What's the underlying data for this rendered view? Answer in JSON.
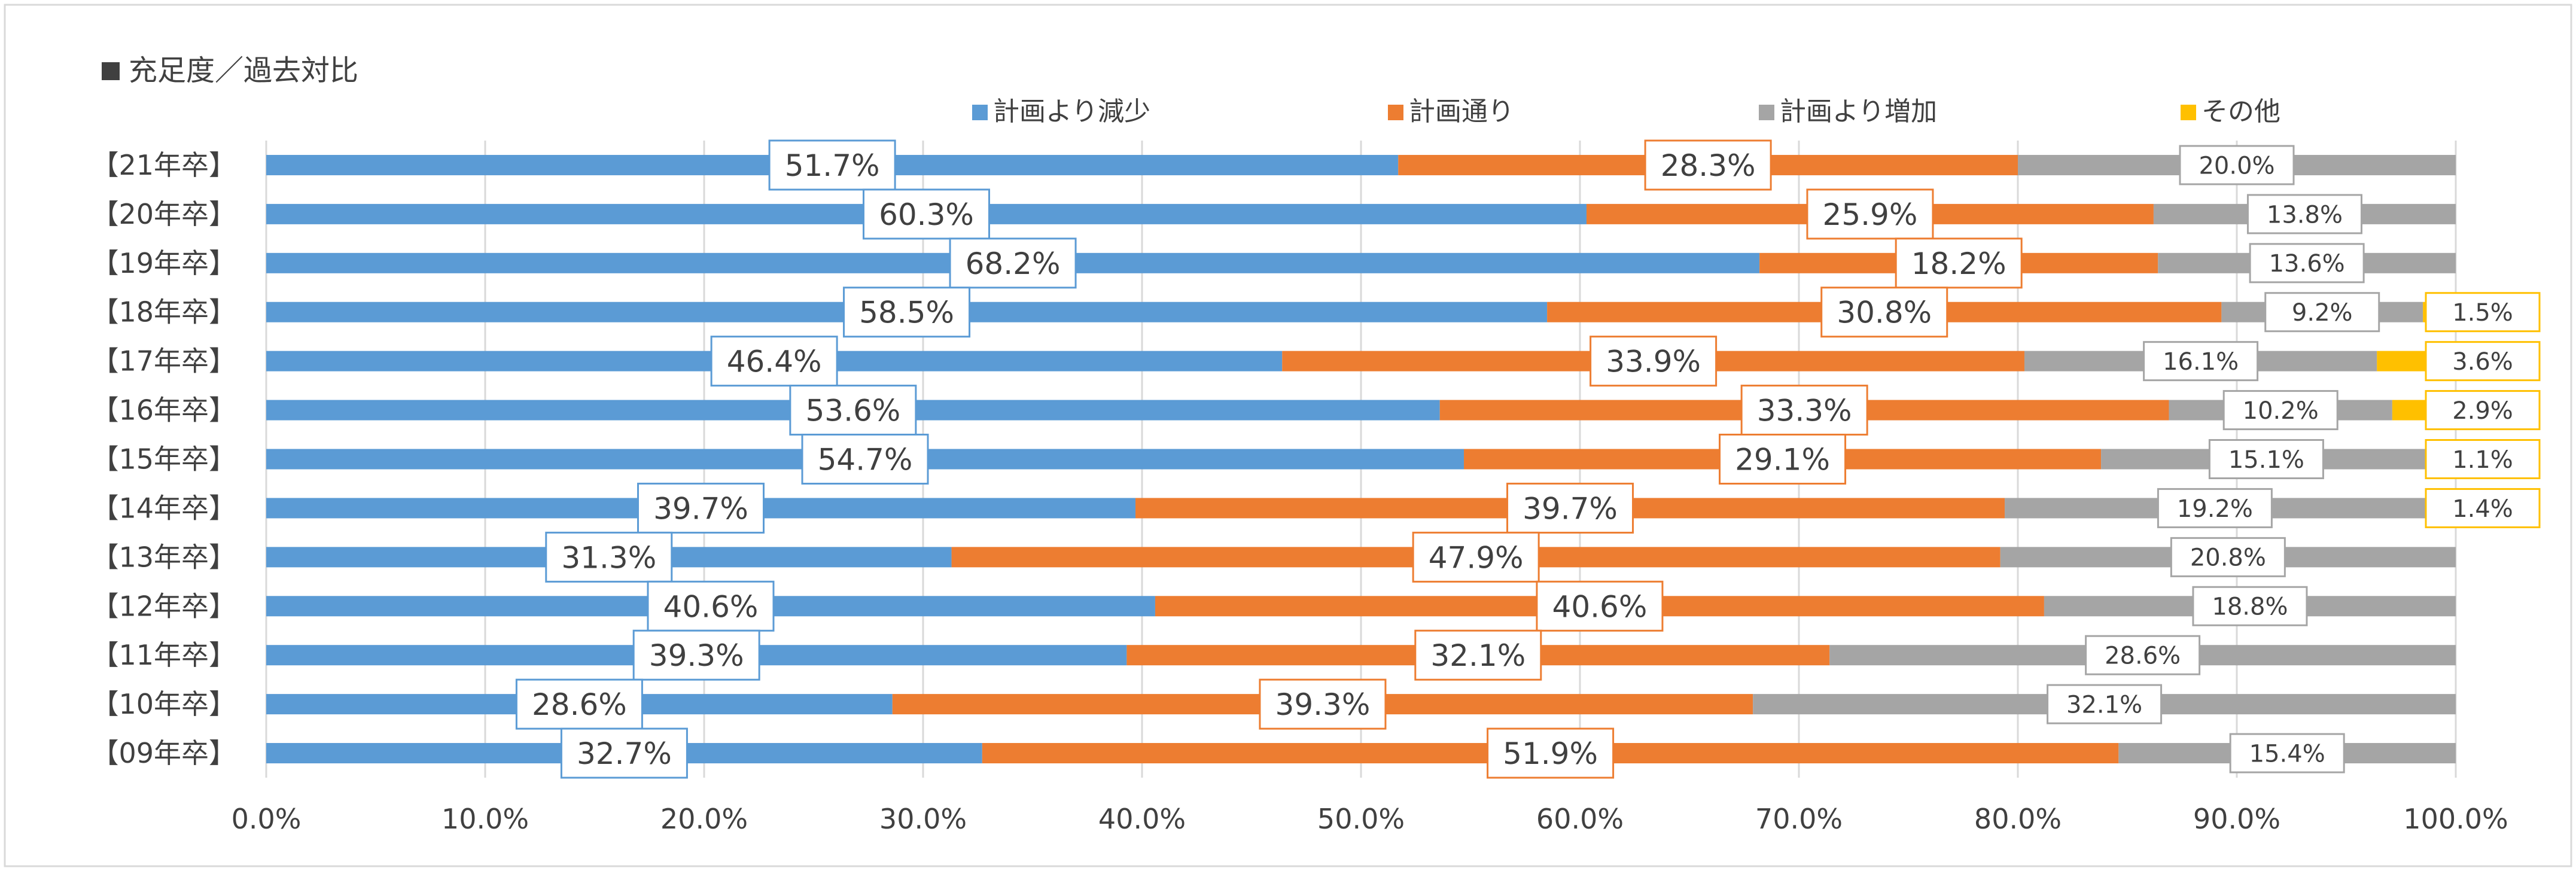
{
  "chart_data": {
    "type": "bar",
    "orientation": "horizontal",
    "stacked": true,
    "title": "充足度／過去対比",
    "categories": [
      "【21年卒】",
      "【20年卒】",
      "【19年卒】",
      "【18年卒】",
      "【17年卒】",
      "【16年卒】",
      "【15年卒】",
      "【14年卒】",
      "【13年卒】",
      "【12年卒】",
      "【11年卒】",
      "【10年卒】",
      "【09年卒】"
    ],
    "series": [
      {
        "name": "計画より減少",
        "color": "#5B9BD5",
        "values": [
          51.7,
          60.3,
          68.2,
          58.5,
          46.4,
          53.6,
          54.7,
          39.7,
          31.3,
          40.6,
          39.3,
          28.6,
          32.7
        ]
      },
      {
        "name": "計画通り",
        "color": "#ED7D31",
        "values": [
          28.3,
          25.9,
          18.2,
          30.8,
          33.9,
          33.3,
          29.1,
          39.7,
          47.9,
          40.6,
          32.1,
          39.3,
          51.9
        ]
      },
      {
        "name": "計画より増加",
        "color": "#A5A5A5",
        "values": [
          20.0,
          13.8,
          13.6,
          9.2,
          16.1,
          10.2,
          15.1,
          19.2,
          20.8,
          18.8,
          28.6,
          32.1,
          15.4
        ]
      },
      {
        "name": "その他",
        "color": "#FFC000",
        "values": [
          null,
          null,
          null,
          1.5,
          3.6,
          2.9,
          1.1,
          1.4,
          null,
          null,
          null,
          null,
          null
        ]
      }
    ],
    "x_ticks": [
      "0.0%",
      "10.0%",
      "20.0%",
      "30.0%",
      "40.0%",
      "50.0%",
      "60.0%",
      "70.0%",
      "80.0%",
      "90.0%",
      "100.0%"
    ],
    "xlim": [
      0,
      100
    ],
    "grid": true,
    "legend_position": "top",
    "value_format": "0.0%"
  }
}
